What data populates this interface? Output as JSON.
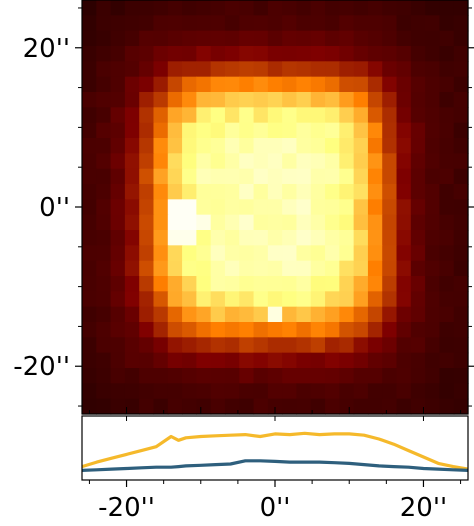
{
  "chart_data": [
    {
      "type": "heatmap",
      "title": "",
      "xlabel": "",
      "ylabel": "",
      "colormap": "afmhot",
      "extent_arcsec": {
        "x": [
          -26,
          26
        ],
        "y": [
          -26,
          26
        ]
      },
      "grid_cells": [
        27,
        27
      ],
      "y_ticks": [
        {
          "value": 20,
          "label": "20''"
        },
        {
          "value": 0,
          "label": "0''"
        },
        {
          "value": -20,
          "label": "-20''"
        }
      ],
      "source": {
        "shape": "rounded-square",
        "center": [
          -1,
          0
        ],
        "half_width": 15,
        "half_height": 15.5,
        "edge_softness": 2.4,
        "plateau_level": 0.86,
        "background_level": 0.12,
        "bright_spots": [
          {
            "x": -12.5,
            "y": -1,
            "level": 0.98
          },
          {
            "x": -12.5,
            "y": -4.5,
            "level": 0.96
          },
          {
            "x": -9,
            "y": -2.5,
            "level": 0.95
          },
          {
            "x": 0,
            "y": -13,
            "level": 0.94
          }
        ]
      }
    },
    {
      "type": "line",
      "title": "",
      "xlabel": "",
      "ylabel": "",
      "xlim": [
        -26,
        26
      ],
      "ylim": [
        0,
        1
      ],
      "x_ticks": [
        {
          "value": -20,
          "label": "-20''"
        },
        {
          "value": 0,
          "label": "0''"
        },
        {
          "value": 20,
          "label": "20''"
        }
      ],
      "x": [
        -26,
        -24,
        -22,
        -20,
        -18,
        -16,
        -14,
        -13,
        -12,
        -10,
        -8,
        -6,
        -4,
        -2,
        0,
        2,
        4,
        6,
        8,
        10,
        12,
        14,
        16,
        18,
        20,
        22,
        24,
        26
      ],
      "series": [
        {
          "name": "",
          "color": "#f5b92b",
          "values": [
            0.21,
            0.28,
            0.34,
            0.4,
            0.46,
            0.52,
            0.68,
            0.62,
            0.66,
            0.68,
            0.69,
            0.7,
            0.71,
            0.68,
            0.72,
            0.71,
            0.73,
            0.71,
            0.72,
            0.72,
            0.7,
            0.64,
            0.56,
            0.46,
            0.36,
            0.26,
            0.21,
            0.17
          ]
        },
        {
          "name": "",
          "color": "#2e5f7d",
          "values": [
            0.15,
            0.16,
            0.17,
            0.18,
            0.19,
            0.2,
            0.2,
            0.21,
            0.22,
            0.23,
            0.24,
            0.25,
            0.3,
            0.3,
            0.29,
            0.28,
            0.28,
            0.28,
            0.27,
            0.26,
            0.24,
            0.22,
            0.21,
            0.2,
            0.18,
            0.17,
            0.16,
            0.15
          ]
        }
      ]
    }
  ]
}
